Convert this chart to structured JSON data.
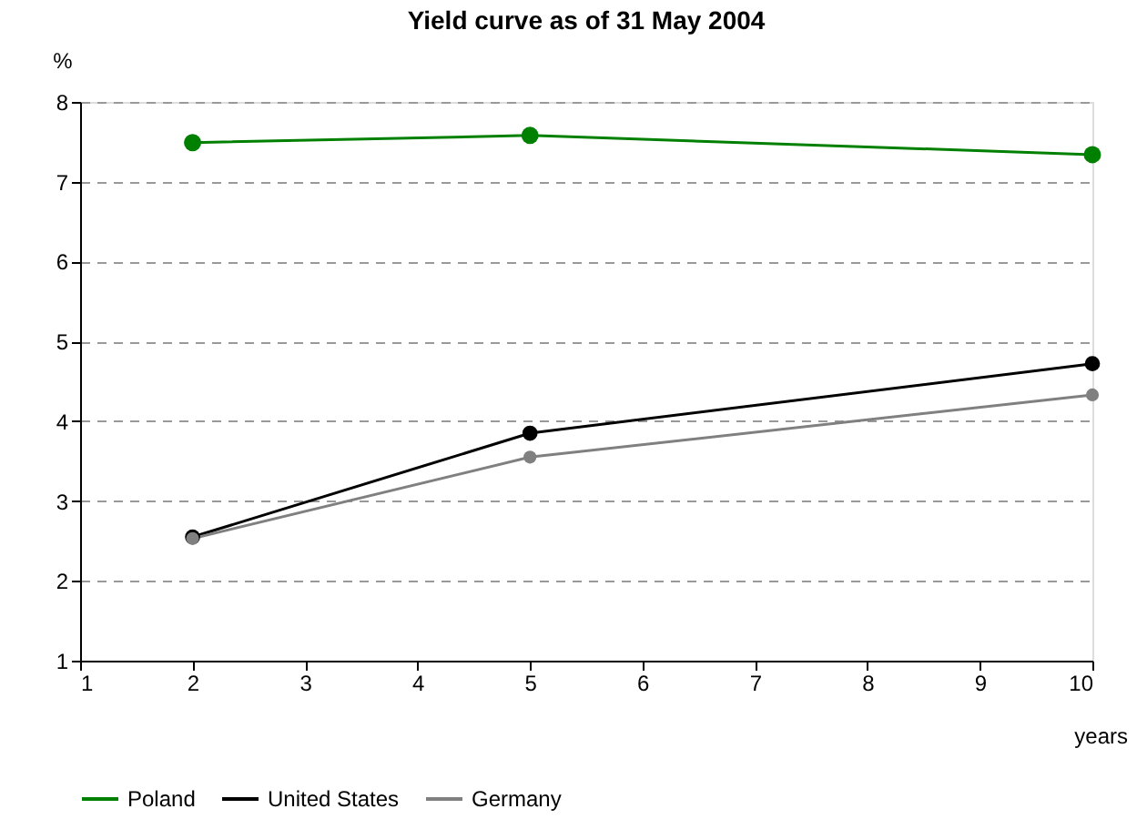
{
  "chart_data": {
    "type": "line",
    "title": "Yield curve as of 31 May 2004",
    "xlabel": "years",
    "ylabel": "%",
    "x": [
      2,
      5,
      10
    ],
    "series": [
      {
        "name": "Poland",
        "color": "#008000",
        "values": [
          7.49,
          7.58,
          7.34
        ]
      },
      {
        "name": "United States",
        "color": "#000000",
        "values": [
          2.55,
          3.85,
          4.72
        ]
      },
      {
        "name": "Germany",
        "color": "#808080",
        "values": [
          2.53,
          3.55,
          4.33
        ]
      }
    ],
    "xlim": [
      1,
      10
    ],
    "xticks": [
      1,
      2,
      3,
      4,
      5,
      6,
      7,
      8,
      9,
      10
    ],
    "ylim": [
      1,
      8
    ],
    "yticks": [
      1,
      2,
      3,
      4,
      5,
      6,
      7,
      8
    ],
    "grid": "y",
    "legend": "bottom",
    "marker": "circle",
    "line_style": "solid"
  }
}
